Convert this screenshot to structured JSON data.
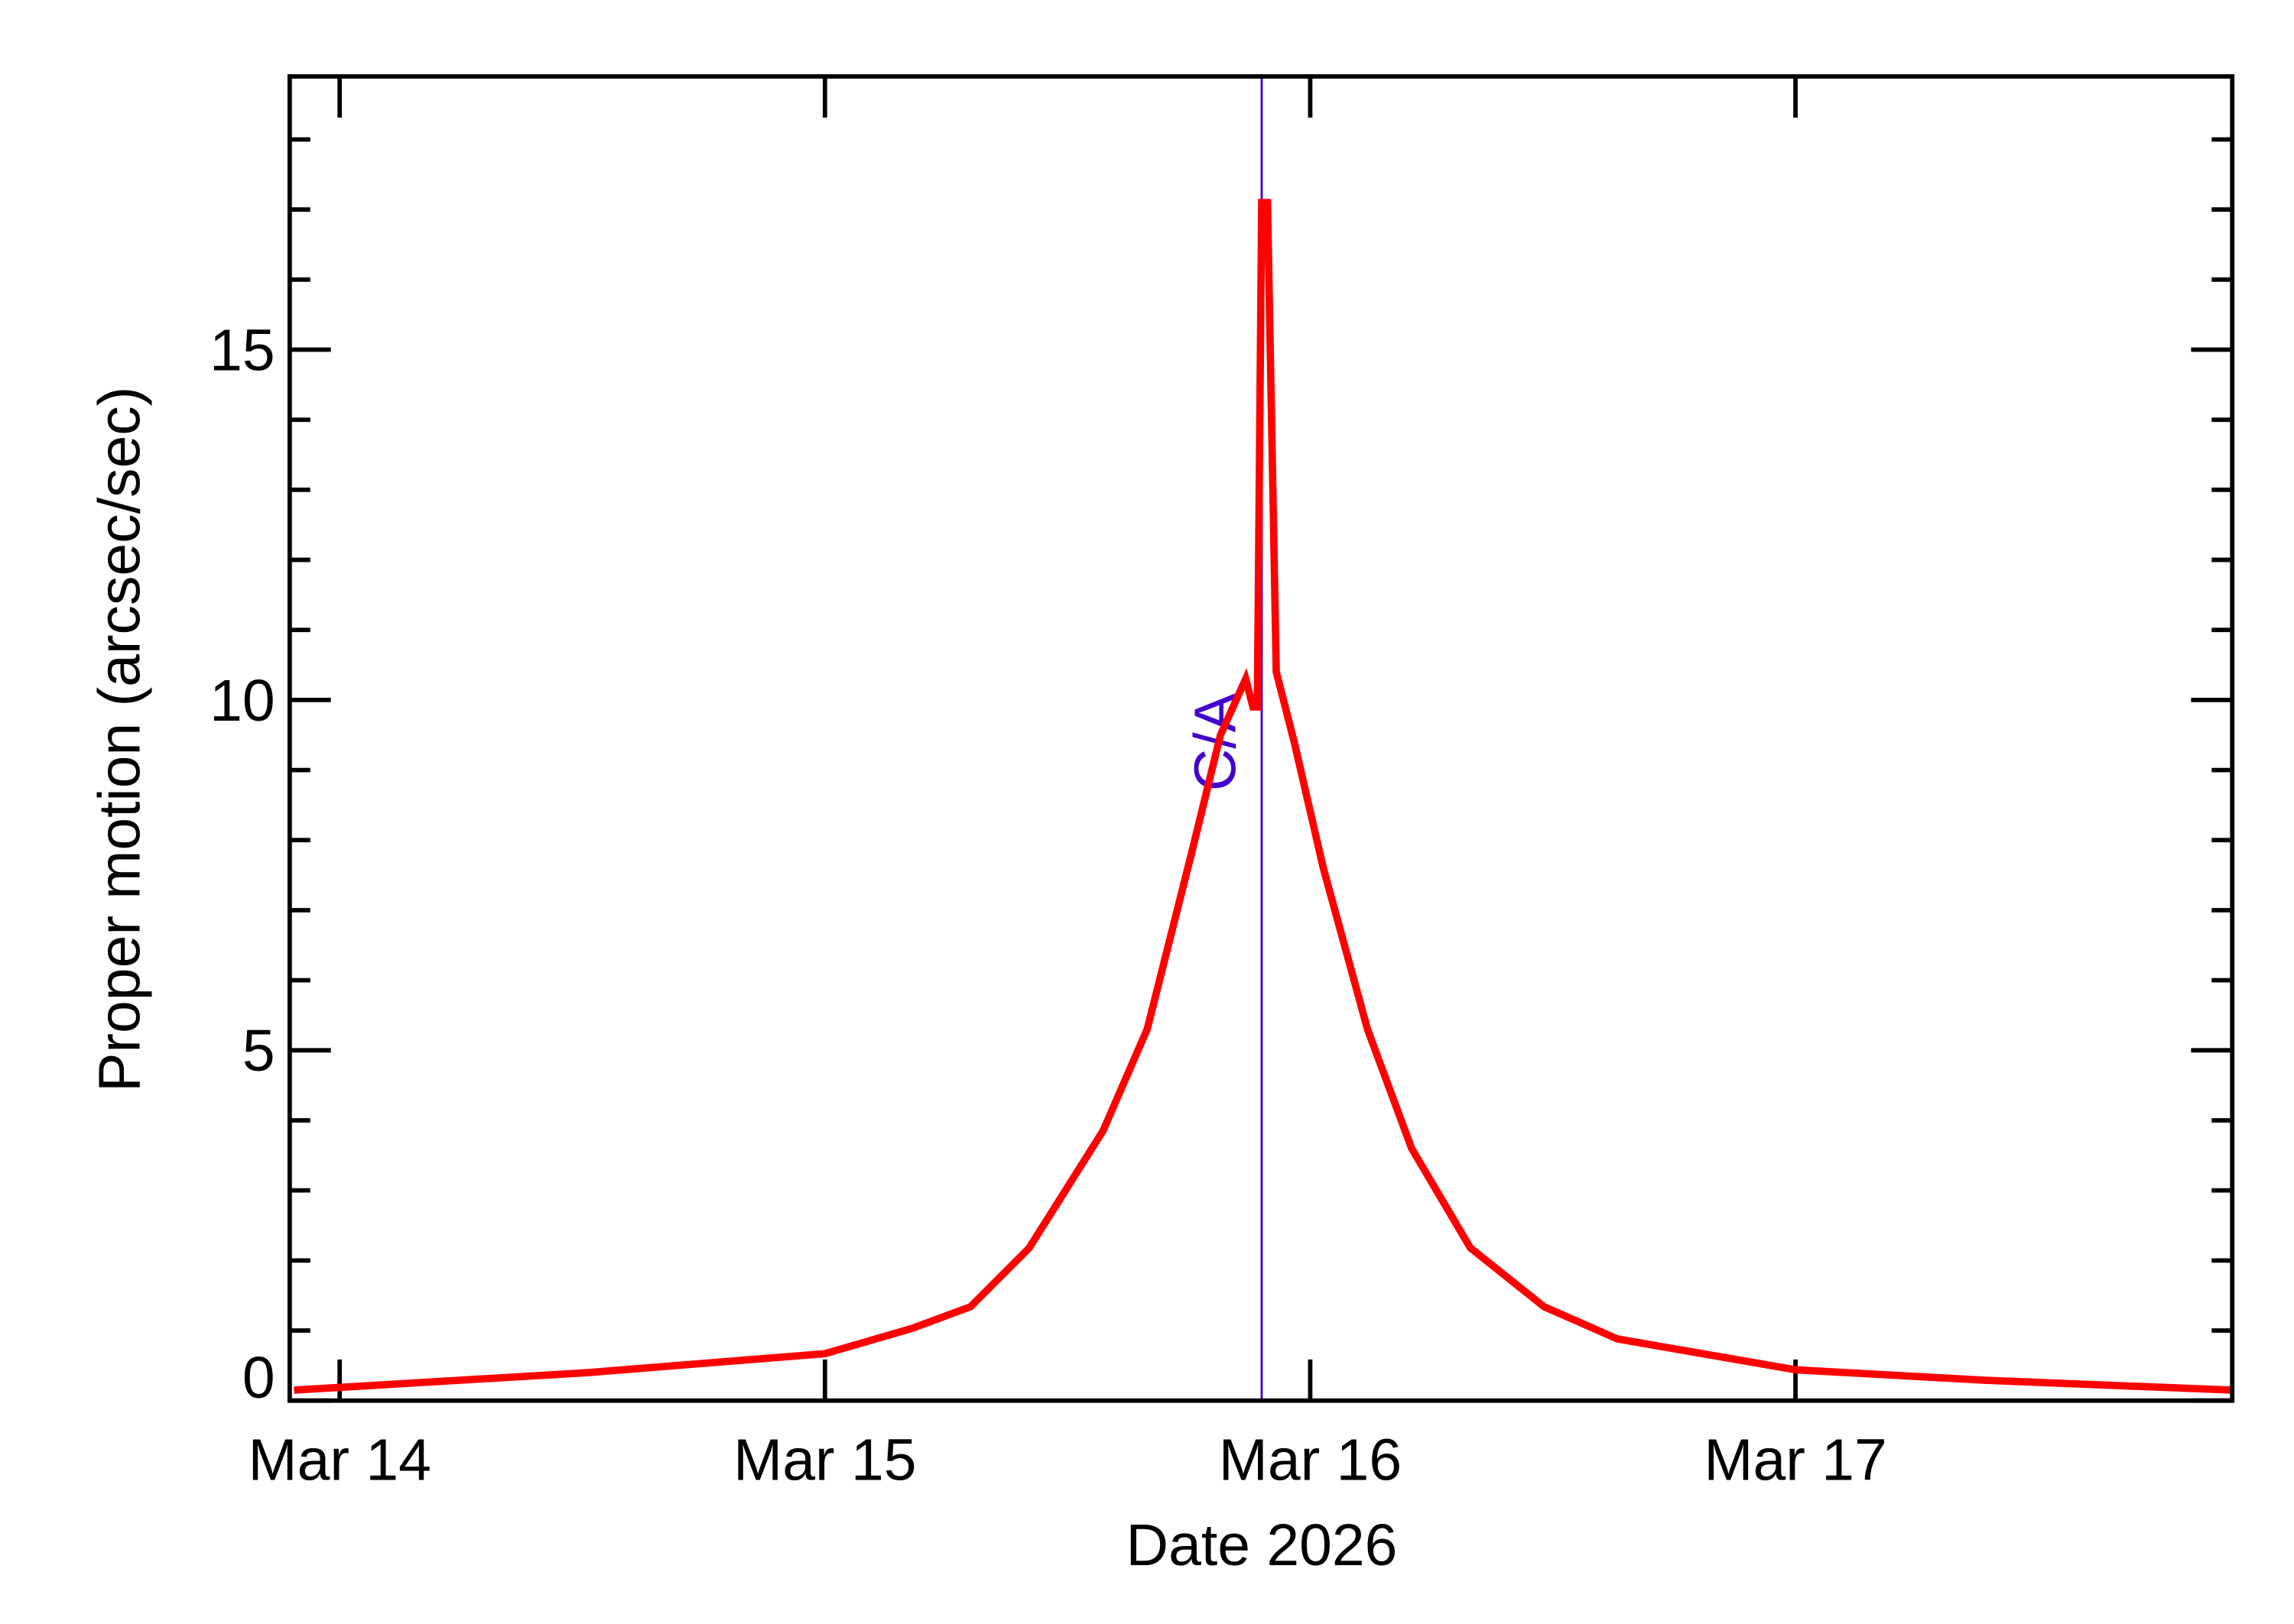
{
  "chart_data": {
    "type": "line",
    "xlabel": "Date 2026",
    "ylabel": "Proper motion (arcsec/sec)",
    "x": [
      -0.094,
      0.512,
      1.0,
      1.179,
      1.3,
      1.421,
      1.573,
      1.664,
      1.755,
      1.815,
      1.867,
      1.882,
      1.891,
      1.9,
      1.912,
      1.93,
      1.967,
      2.027,
      2.118,
      2.209,
      2.33,
      2.482,
      2.633,
      3.0,
      3.391,
      3.9
    ],
    "series": [
      {
        "name": "Proper motion",
        "color": "#ff0000",
        "values": [
          0.15,
          0.4,
          0.67,
          1.03,
          1.34,
          2.18,
          3.85,
          5.3,
          7.8,
          9.5,
          10.3,
          9.9,
          9.9,
          17.1,
          17.1,
          10.4,
          9.4,
          7.6,
          5.3,
          3.6,
          2.18,
          1.34,
          0.88,
          0.44,
          0.29,
          0.15
        ]
      }
    ],
    "xlim": [
      -0.103,
      3.9
    ],
    "xticks": [
      {
        "value": 0,
        "label": "Mar 14"
      },
      {
        "value": 1,
        "label": "Mar 15"
      },
      {
        "value": 2,
        "label": "Mar 16"
      },
      {
        "value": 3,
        "label": "Mar 17"
      }
    ],
    "ylim": [
      0,
      18.9
    ],
    "yticks": [
      0,
      5,
      10,
      15
    ],
    "yminorticks": [
      1,
      2,
      3,
      4,
      6,
      7,
      8,
      9,
      11,
      12,
      13,
      14,
      16,
      17,
      18
    ],
    "annotations": [
      {
        "x": 1.9,
        "label": "C/A",
        "color": "#4400cc"
      }
    ]
  }
}
